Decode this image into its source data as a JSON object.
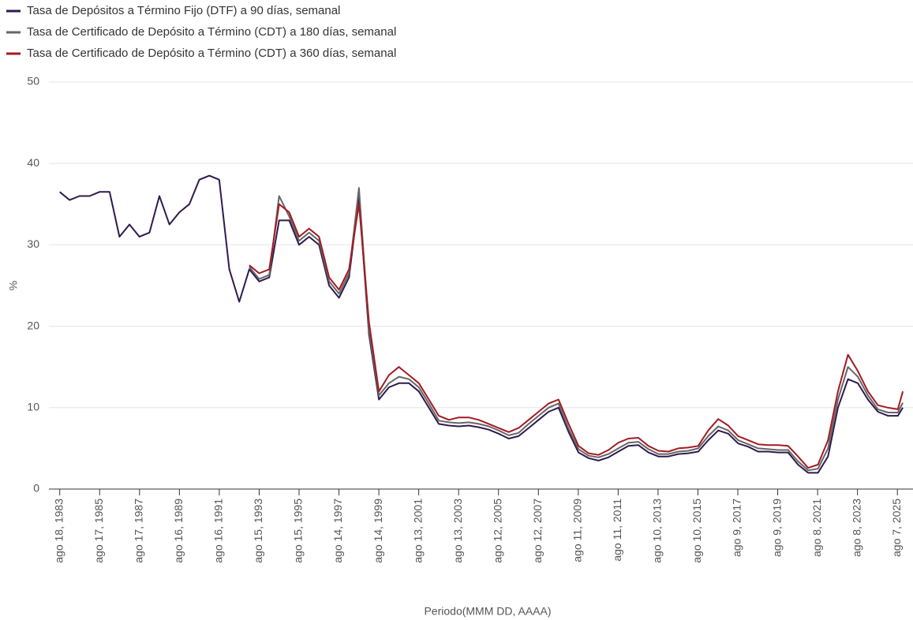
{
  "chart_data": {
    "type": "line",
    "x_label": "Periodo(MMM DD, AAAA)",
    "y_label": "%",
    "x": [
      "1983-08-18",
      "1984-02-15",
      "1984-08-15",
      "1985-02-15",
      "1985-08-15",
      "1986-02-15",
      "1986-08-15",
      "1987-02-15",
      "1987-08-15",
      "1988-02-15",
      "1988-08-15",
      "1989-02-15",
      "1989-08-15",
      "1990-02-15",
      "1990-08-15",
      "1991-02-15",
      "1991-08-15",
      "1992-02-15",
      "1992-08-15",
      "1993-02-15",
      "1993-08-15",
      "1994-02-15",
      "1994-08-15",
      "1995-02-15",
      "1995-08-15",
      "1996-02-15",
      "1996-08-15",
      "1997-02-15",
      "1997-08-15",
      "1998-02-15",
      "1998-08-15",
      "1999-02-15",
      "1999-08-15",
      "2000-02-15",
      "2000-08-15",
      "2001-02-15",
      "2001-08-15",
      "2002-02-15",
      "2002-08-15",
      "2003-02-15",
      "2003-08-15",
      "2004-02-15",
      "2004-08-15",
      "2005-02-15",
      "2005-08-15",
      "2006-02-15",
      "2006-08-15",
      "2007-02-15",
      "2007-08-15",
      "2008-02-15",
      "2008-08-15",
      "2009-02-15",
      "2009-08-15",
      "2010-02-15",
      "2010-08-15",
      "2011-02-15",
      "2011-08-15",
      "2012-02-15",
      "2012-08-15",
      "2013-02-15",
      "2013-08-15",
      "2014-02-15",
      "2014-08-15",
      "2015-02-15",
      "2015-08-15",
      "2016-02-15",
      "2016-08-15",
      "2017-02-15",
      "2017-08-15",
      "2018-02-15",
      "2018-08-15",
      "2019-02-15",
      "2019-08-15",
      "2020-02-15",
      "2020-08-15",
      "2021-02-15",
      "2021-08-15",
      "2022-02-15",
      "2022-08-15",
      "2023-02-15",
      "2023-08-15",
      "2024-02-15",
      "2024-08-15",
      "2025-02-15",
      "2025-08-15",
      "2025-11-15"
    ],
    "series": [
      {
        "name": "Tasa de Depósitos a Término Fijo (DTF) a 90 días, semanal",
        "color": "#2e1a4f",
        "values": [
          36.5,
          35.5,
          36,
          36,
          36.5,
          36.5,
          31,
          32.5,
          31,
          31.5,
          36,
          32.5,
          34,
          35,
          38,
          38.5,
          38,
          27,
          23,
          27,
          25.5,
          26,
          33,
          33,
          30,
          31,
          30,
          25,
          23.5,
          26,
          36,
          19,
          11,
          12.5,
          13,
          13,
          12,
          10,
          8,
          7.8,
          7.7,
          7.8,
          7.6,
          7.3,
          6.8,
          6.2,
          6.5,
          7.5,
          8.5,
          9.5,
          10,
          7,
          4.5,
          3.8,
          3.5,
          3.9,
          4.6,
          5.3,
          5.4,
          4.5,
          4,
          4,
          4.3,
          4.4,
          4.6,
          6,
          7.2,
          6.8,
          5.6,
          5.2,
          4.6,
          4.6,
          4.5,
          4.5,
          3,
          2,
          2,
          4,
          10,
          13.5,
          13,
          11,
          9.5,
          9,
          9,
          10
        ]
      },
      {
        "name": "Tasa de Certificado de Depósito a Término (CDT) a 180 días, semanal",
        "color": "#666666",
        "values": [
          null,
          null,
          null,
          null,
          null,
          null,
          null,
          null,
          null,
          null,
          null,
          null,
          null,
          null,
          null,
          null,
          null,
          null,
          null,
          27.3,
          25.8,
          26.3,
          36,
          33.5,
          30.5,
          31.5,
          30.5,
          25.5,
          24,
          26.5,
          37,
          19.5,
          11.5,
          13,
          13.8,
          13.5,
          12.5,
          10.5,
          8.4,
          8.2,
          8.1,
          8.2,
          8,
          7.7,
          7.2,
          6.6,
          6.9,
          8,
          9,
          10,
          10.5,
          7.4,
          4.9,
          4.1,
          3.9,
          4.3,
          5,
          5.7,
          5.8,
          4.9,
          4.3,
          4.3,
          4.6,
          4.7,
          5,
          6.5,
          7.7,
          7.2,
          6,
          5.5,
          5,
          4.9,
          4.8,
          4.8,
          3.4,
          2.3,
          2.5,
          5,
          11,
          15,
          13.8,
          11.5,
          9.8,
          9.4,
          9.4,
          10.6
        ]
      },
      {
        "name": "Tasa de Certificado de Depósito a Término (CDT) a 360 días, semanal",
        "color": "#a31a22",
        "values": [
          null,
          null,
          null,
          null,
          null,
          null,
          null,
          null,
          null,
          null,
          null,
          null,
          null,
          null,
          null,
          null,
          null,
          null,
          null,
          27.5,
          26.5,
          27,
          35,
          34,
          31,
          32,
          31,
          26,
          24.5,
          27,
          35,
          20.5,
          12,
          14,
          15,
          14,
          13,
          11,
          9,
          8.5,
          8.8,
          8.8,
          8.5,
          8,
          7.5,
          7,
          7.5,
          8.5,
          9.5,
          10.5,
          11,
          8,
          5.3,
          4.4,
          4.2,
          4.8,
          5.7,
          6.2,
          6.3,
          5.3,
          4.7,
          4.6,
          5,
          5.1,
          5.3,
          7.2,
          8.6,
          7.8,
          6.5,
          6,
          5.5,
          5.4,
          5.4,
          5.3,
          4,
          2.6,
          3,
          6,
          12,
          16.5,
          14.5,
          12,
          10.3,
          10,
          9.8,
          12
        ]
      }
    ],
    "xlim": [
      "1983-02-01",
      "2026-05-20"
    ],
    "xticks": [
      {
        "value": "1983-08-18",
        "label": "ago 18, 1983"
      },
      {
        "value": "1985-08-17",
        "label": "ago 17, 1985"
      },
      {
        "value": "1987-08-17",
        "label": "ago 17, 1987"
      },
      {
        "value": "1989-08-16",
        "label": "ago 16, 1989"
      },
      {
        "value": "1991-08-16",
        "label": "ago 16, 1991"
      },
      {
        "value": "1993-08-15",
        "label": "ago 15, 1993"
      },
      {
        "value": "1995-08-15",
        "label": "ago 15, 1995"
      },
      {
        "value": "1997-08-14",
        "label": "ago 14, 1997"
      },
      {
        "value": "1999-08-14",
        "label": "ago 14, 1999"
      },
      {
        "value": "2001-08-13",
        "label": "ago 13, 2001"
      },
      {
        "value": "2003-08-13",
        "label": "ago 13, 2003"
      },
      {
        "value": "2005-08-12",
        "label": "ago 12, 2005"
      },
      {
        "value": "2007-08-12",
        "label": "ago 12, 2007"
      },
      {
        "value": "2009-08-11",
        "label": "ago 11, 2009"
      },
      {
        "value": "2011-08-11",
        "label": "ago 11, 2011"
      },
      {
        "value": "2013-08-10",
        "label": "ago 10, 2013"
      },
      {
        "value": "2015-08-10",
        "label": "ago 10, 2015"
      },
      {
        "value": "2017-08-09",
        "label": "ago 9, 2017"
      },
      {
        "value": "2019-08-09",
        "label": "ago 9, 2019"
      },
      {
        "value": "2021-08-08",
        "label": "ago 8, 2021"
      },
      {
        "value": "2023-08-08",
        "label": "ago 8, 2023"
      },
      {
        "value": "2025-08-07",
        "label": "ago 7, 2025"
      }
    ],
    "ylim": [
      0,
      50
    ],
    "yticks": [
      0,
      10,
      20,
      30,
      40,
      50
    ],
    "grid": true
  }
}
